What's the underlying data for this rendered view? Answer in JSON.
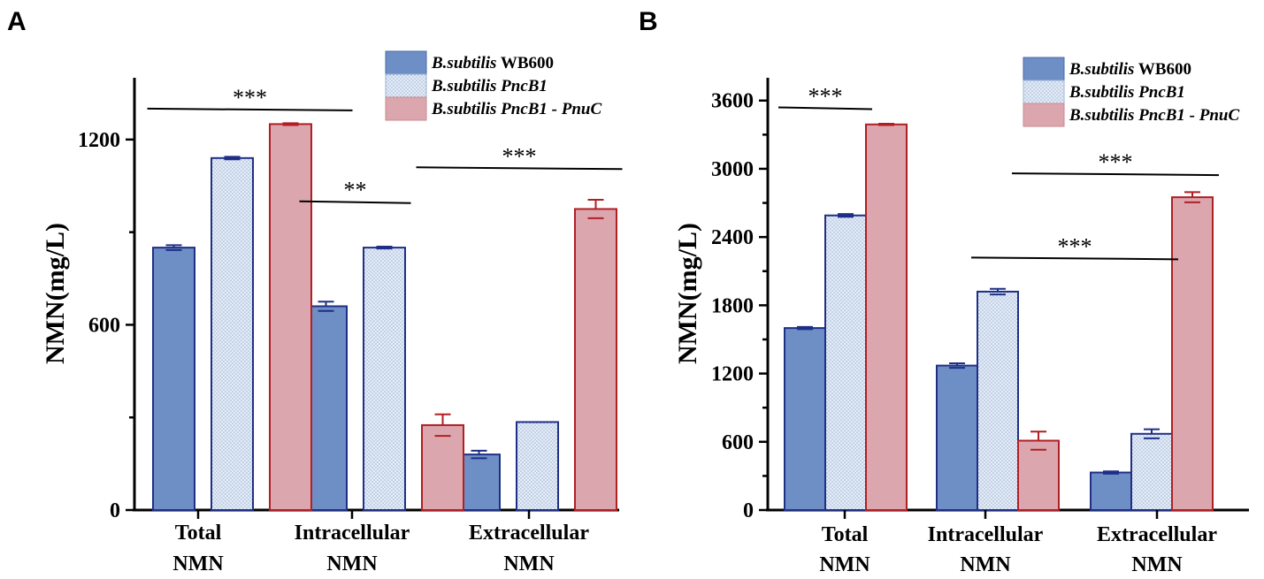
{
  "colors": {
    "wb600_fill": "#6e8fc6",
    "wb600_stroke": "#1f2f86",
    "pncb1_fill": "#dbe6f3",
    "pncb1_stroke": "#1f2f86",
    "pnuc_fill": "#dca6ae",
    "pnuc_stroke": "#b01f24"
  },
  "chart_data": [
    {
      "panel": "A",
      "type": "bar",
      "ylabel": "NMN(mg/L)",
      "ylim": [
        0,
        1400
      ],
      "yticks": [
        0,
        600,
        1200
      ],
      "categories": [
        [
          "Total",
          "NMN"
        ],
        [
          "Intracellular",
          "NMN"
        ],
        [
          "Extracellular",
          "NMN"
        ]
      ],
      "series": [
        {
          "name_italic": "B.subtilis",
          "name_rest": " WB600",
          "key": "wb600",
          "values": [
            850,
            660,
            180
          ],
          "errors": [
            8,
            15,
            12
          ]
        },
        {
          "name_italic": "B.subtilis PncB1",
          "name_rest": "",
          "key": "pncb1",
          "values": [
            1140,
            850,
            285
          ],
          "errors": [
            4,
            3,
            0
          ]
        },
        {
          "name_italic": "B.subtilis PncB1 - PnuC",
          "name_rest": "",
          "key": "pnuc",
          "values": [
            1250,
            275,
            975
          ],
          "errors": [
            3,
            35,
            30
          ]
        }
      ],
      "significance": [
        {
          "label": "***",
          "from": [
            0,
            0
          ],
          "to": [
            1,
            0
          ],
          "y": 1300
        },
        {
          "label": "**",
          "from": [
            1,
            0
          ],
          "to": [
            1,
            1
          ],
          "y": 1000
        },
        {
          "label": "***",
          "from": [
            1,
            2
          ],
          "to": [
            2,
            2
          ],
          "y": 1110
        }
      ]
    },
    {
      "panel": "B",
      "type": "bar",
      "ylabel": "NMN(mg/L)",
      "ylim": [
        0,
        3800
      ],
      "yticks": [
        0,
        600,
        1200,
        1800,
        2400,
        3000,
        3600
      ],
      "categories": [
        [
          "Total",
          "NMN"
        ],
        [
          "Intracellular",
          "NMN"
        ],
        [
          "Extracellular",
          "NMN"
        ]
      ],
      "series": [
        {
          "name_italic": "B.subtilis",
          "name_rest": " WB600",
          "key": "wb600",
          "values": [
            1600,
            1270,
            330
          ],
          "errors": [
            10,
            20,
            10
          ]
        },
        {
          "name_italic": "B.subtilis PncB1",
          "name_rest": "",
          "key": "pncb1",
          "values": [
            2590,
            1920,
            670
          ],
          "errors": [
            12,
            25,
            40
          ]
        },
        {
          "name_italic": "B.subtilis PncB1 - PnuC",
          "name_rest": "",
          "key": "pnuc",
          "values": [
            3390,
            610,
            2750
          ],
          "errors": [
            6,
            80,
            45
          ]
        }
      ],
      "significance": [
        {
          "label": "***",
          "from": [
            0,
            0
          ],
          "to": [
            0,
            1
          ],
          "y": 3540
        },
        {
          "label": "***",
          "from": [
            1,
            2
          ],
          "to": [
            2,
            2
          ],
          "y": 2960
        },
        {
          "label": "***",
          "from": [
            1,
            1
          ],
          "to": [
            2,
            1
          ],
          "y": 2220
        }
      ]
    }
  ]
}
